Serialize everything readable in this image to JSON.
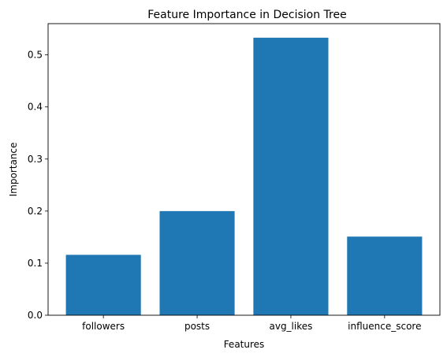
{
  "chart_data": {
    "type": "bar",
    "title": "Feature Importance in Decision Tree",
    "xlabel": "Features",
    "ylabel": "Importance",
    "categories": [
      "followers",
      "posts",
      "avg_likes",
      "influence_score"
    ],
    "values": [
      0.116,
      0.2,
      0.533,
      0.151
    ],
    "ylim": [
      0,
      0.56
    ],
    "yticks": [
      0.0,
      0.1,
      0.2,
      0.3,
      0.4,
      0.5
    ],
    "ytick_labels": [
      "0.0",
      "0.1",
      "0.2",
      "0.3",
      "0.4",
      "0.5"
    ],
    "bar_color": "#1f77b4",
    "grid": false,
    "legend": "none"
  }
}
